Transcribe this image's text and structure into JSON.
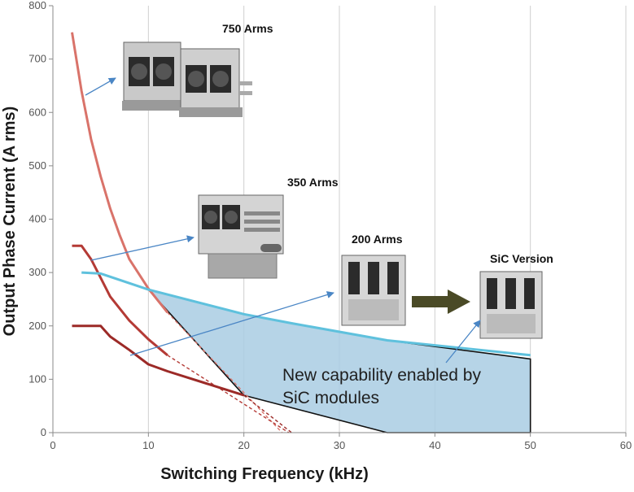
{
  "chart_data": {
    "type": "line",
    "title": "",
    "xlabel": "Switching Frequency (kHz)",
    "ylabel": "Output Phase Current (A rms)",
    "xlim": [
      0,
      60
    ],
    "ylim": [
      0,
      800
    ],
    "xticks": [
      0,
      10,
      20,
      30,
      40,
      50,
      60
    ],
    "yticks": [
      0,
      100,
      200,
      300,
      400,
      500,
      600,
      700,
      800
    ],
    "grid": "vertical lines at x ticks",
    "series": [
      {
        "id": "750",
        "color": "#d9736a",
        "x": [
          2,
          3,
          4,
          5,
          6,
          7,
          8,
          10,
          12
        ],
        "y": [
          750,
          640,
          550,
          480,
          420,
          370,
          325,
          270,
          225
        ],
        "extension": {
          "x": [
            12,
            24
          ],
          "y": [
            225,
            0
          ]
        }
      },
      {
        "id": "350",
        "color": "#b43a35",
        "x": [
          2,
          3,
          4,
          5,
          6,
          8,
          10,
          12
        ],
        "y": [
          350,
          350,
          325,
          290,
          255,
          210,
          175,
          145
        ],
        "extension": {
          "x": [
            12,
            24.7
          ],
          "y": [
            145,
            0
          ]
        }
      },
      {
        "id": "200",
        "color": "#9c2a27",
        "x": [
          2,
          3,
          4,
          5,
          6,
          8,
          10,
          12,
          20
        ],
        "y": [
          200,
          200,
          200,
          200,
          180,
          155,
          128,
          115,
          70
        ],
        "extension": {
          "x": [
            20,
            25
          ],
          "y": [
            70,
            0
          ]
        }
      },
      {
        "id": "sic",
        "color": "#5fc1dd",
        "x": [
          3,
          5,
          10,
          20,
          25,
          35,
          50
        ],
        "y": [
          300,
          298,
          268,
          222,
          205,
          173,
          145
        ]
      }
    ],
    "capability_region": {
      "x": [
        10,
        20,
        25,
        35,
        50,
        50,
        35,
        20,
        10
      ],
      "y": [
        268,
        222,
        205,
        173,
        138,
        0,
        0,
        70,
        268
      ],
      "fill": "#a9cde3",
      "stroke": "#111111"
    },
    "annotation": {
      "lines": [
        "New capability enabled by",
        "SiC modules"
      ]
    },
    "products": [
      {
        "label": "750 Arms"
      },
      {
        "label": "350 Arms"
      },
      {
        "label": "200 Arms"
      },
      {
        "label": "SiC  Version"
      }
    ]
  }
}
